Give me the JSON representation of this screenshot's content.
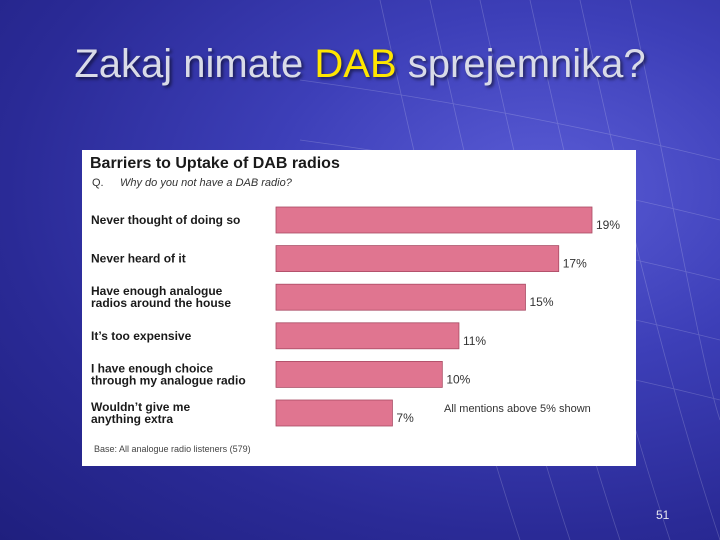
{
  "slide": {
    "title_before": "Zakaj nimate ",
    "title_highlight": "DAB",
    "title_after": " sprejemnika?",
    "page_number": "51"
  },
  "colors": {
    "bar_fill": "#e07590",
    "bar_stroke": "#a94a63",
    "title_highlight": "#ffe600"
  },
  "chart_data": {
    "type": "bar",
    "orientation": "horizontal",
    "title": "Barriers to Uptake of DAB radios",
    "question_label": "Q.",
    "question": "Why do you not have a DAB radio?",
    "categories": [
      [
        "Never thought of doing so"
      ],
      [
        "Never heard of it"
      ],
      [
        "Have enough analogue",
        "radios around the house"
      ],
      [
        "It’s too expensive"
      ],
      [
        "I have enough choice",
        "through my analogue radio"
      ],
      [
        "Wouldn’t give me",
        "anything extra"
      ]
    ],
    "values": [
      19,
      17,
      15,
      11,
      10,
      7
    ],
    "value_labels": [
      "19%",
      "17%",
      "15%",
      "11%",
      "10%",
      "7%"
    ],
    "xlim": [
      0,
      19
    ],
    "annotation": "All mentions above 5% shown",
    "base_note": "Base: All analogue radio listeners (579)"
  }
}
